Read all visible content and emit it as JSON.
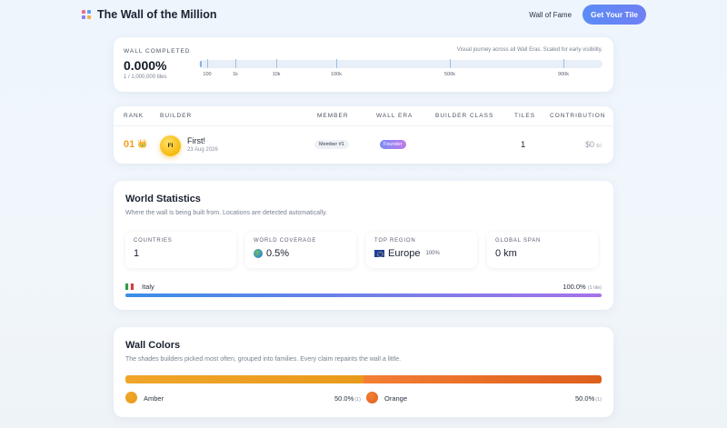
{
  "header": {
    "title": "The Wall of the Million",
    "nav_link": "Wall of Fame",
    "cta": "Get Your Tile",
    "logo_colors": [
      "#f36b8a",
      "#5aa0f0",
      "#8f7cf3",
      "#f4b23e"
    ]
  },
  "progress": {
    "label": "WALL COMPLETED",
    "percent_text": "0.000%",
    "sub": "1 / 1,000,000 tiles",
    "note": "Visual journey across all Wall Eras. Scaled for early visibility.",
    "fraction": 1e-06,
    "milestones": [
      "100",
      "1k",
      "10k",
      "100k",
      "500k",
      "900k"
    ]
  },
  "leaderboard": {
    "headers": [
      "RANK",
      "BUILDER",
      "MEMBER",
      "WALL ERA",
      "BUILDER CLASS",
      "TILES",
      "CONTRIBUTION"
    ],
    "rows": [
      {
        "rank": "01",
        "crown": "👑",
        "initials": "FI",
        "name": "First!",
        "date": "23 Aug 2026",
        "member": "Member #1",
        "era": "Founder",
        "builder_class": "",
        "tiles": "1",
        "contribution": "$0",
        "contribution_unit": "$0"
      }
    ]
  },
  "statistics": {
    "title": "World Statistics",
    "description": "Where the wall is being built from. Locations are detected automatically.",
    "boxes": [
      {
        "label": "COUNTRIES",
        "value": "1",
        "extra": ""
      },
      {
        "label": "WORLD COVERAGE",
        "value": "0.5%",
        "extra": ""
      },
      {
        "label": "TOP REGION",
        "value": "Europe",
        "extra": "100%"
      },
      {
        "label": "GLOBAL SPAN",
        "value": "0 km",
        "extra": ""
      }
    ],
    "countries": [
      {
        "name": "Italy",
        "percent": "100.0%",
        "tiles": "(1 tile)",
        "share": 1.0
      }
    ]
  },
  "colors": {
    "title": "Wall Colors",
    "description": "The shades builders picked most often, grouped into families. Every claim repaints the wall a little.",
    "families": [
      {
        "name": "Amber",
        "percent": "50.0%",
        "count": "(1)",
        "share": 0.5,
        "color": "#f0a52a",
        "color2": "#e89a1c"
      },
      {
        "name": "Orange",
        "percent": "50.0%",
        "count": "(1)",
        "share": 0.5,
        "color": "#f47f35",
        "color2": "#dd5f1c"
      }
    ]
  }
}
